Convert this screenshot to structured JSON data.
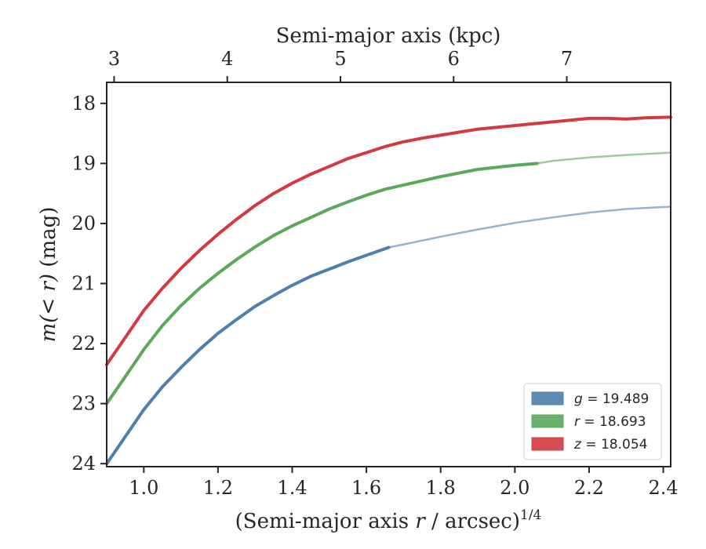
{
  "chart_data": {
    "type": "line",
    "xlabel_prefix": "(Semi-major axis ",
    "xlabel_var": "r",
    "xlabel_mid": " / arcsec)",
    "xlabel_sup": "1/4",
    "ylabel_var": "m(< r)",
    "ylabel_suffix": " (mag)",
    "top_xlabel": "Semi-major axis (kpc)",
    "xlim": [
      0.9,
      2.42
    ],
    "ylim": [
      24.05,
      17.65
    ],
    "xticks": [
      1.0,
      1.2,
      1.4,
      1.6,
      1.8,
      2.0,
      2.2,
      2.4
    ],
    "xtick_labels": [
      "1.0",
      "1.2",
      "1.4",
      "1.6",
      "1.8",
      "2.0",
      "2.2",
      "2.4"
    ],
    "yticks": [
      18,
      19,
      20,
      21,
      22,
      23,
      24
    ],
    "ytick_labels": [
      "18",
      "19",
      "20",
      "21",
      "22",
      "23",
      "24"
    ],
    "top_ticks_xpos": [
      0.92,
      1.225,
      1.53,
      1.835,
      2.14
    ],
    "top_tick_labels": [
      "3",
      "4",
      "5",
      "6",
      "7"
    ],
    "legend_position": "lower-right",
    "grid": false,
    "series": [
      {
        "name": "g = 19.489",
        "band": "g",
        "value": "19.489",
        "color": "#4e7fad",
        "x": [
          0.9,
          0.95,
          1.0,
          1.05,
          1.1,
          1.15,
          1.2,
          1.25,
          1.3,
          1.35,
          1.4,
          1.45,
          1.5,
          1.55,
          1.6,
          1.66,
          1.7,
          1.8,
          1.9,
          2.0,
          2.1,
          2.2,
          2.3,
          2.42
        ],
        "y": [
          24.0,
          23.55,
          23.1,
          22.72,
          22.4,
          22.1,
          21.83,
          21.6,
          21.38,
          21.2,
          21.03,
          20.88,
          20.76,
          20.64,
          20.53,
          20.4,
          20.35,
          20.22,
          20.1,
          19.99,
          19.9,
          19.82,
          19.76,
          19.72
        ],
        "solid_until": 1.66
      },
      {
        "name": "r = 18.693",
        "band": "r",
        "value": "18.693",
        "color": "#5ba85b",
        "x": [
          0.9,
          0.95,
          1.0,
          1.05,
          1.1,
          1.15,
          1.2,
          1.25,
          1.3,
          1.35,
          1.4,
          1.45,
          1.5,
          1.55,
          1.6,
          1.65,
          1.7,
          1.8,
          1.9,
          2.0,
          2.06,
          2.1,
          2.2,
          2.3,
          2.42
        ],
        "y": [
          23.0,
          22.55,
          22.1,
          21.7,
          21.37,
          21.08,
          20.83,
          20.6,
          20.39,
          20.2,
          20.04,
          19.9,
          19.76,
          19.64,
          19.53,
          19.43,
          19.36,
          19.22,
          19.1,
          19.03,
          19.0,
          18.96,
          18.9,
          18.86,
          18.82
        ],
        "solid_until": 2.06
      },
      {
        "name": "z = 18.054",
        "band": "z",
        "value": "18.054",
        "color": "#d33a3f",
        "x": [
          0.9,
          0.95,
          1.0,
          1.05,
          1.1,
          1.15,
          1.2,
          1.25,
          1.3,
          1.35,
          1.4,
          1.45,
          1.5,
          1.55,
          1.6,
          1.65,
          1.7,
          1.75,
          1.8,
          1.85,
          1.9,
          1.95,
          2.0,
          2.05,
          2.1,
          2.15,
          2.2,
          2.25,
          2.3,
          2.35,
          2.42
        ],
        "y": [
          22.35,
          21.9,
          21.45,
          21.08,
          20.75,
          20.45,
          20.18,
          19.93,
          19.7,
          19.5,
          19.33,
          19.18,
          19.05,
          18.92,
          18.82,
          18.72,
          18.64,
          18.58,
          18.53,
          18.48,
          18.43,
          18.4,
          18.37,
          18.34,
          18.31,
          18.28,
          18.25,
          18.25,
          18.26,
          18.24,
          18.23
        ],
        "solid_until": 2.42
      }
    ]
  }
}
